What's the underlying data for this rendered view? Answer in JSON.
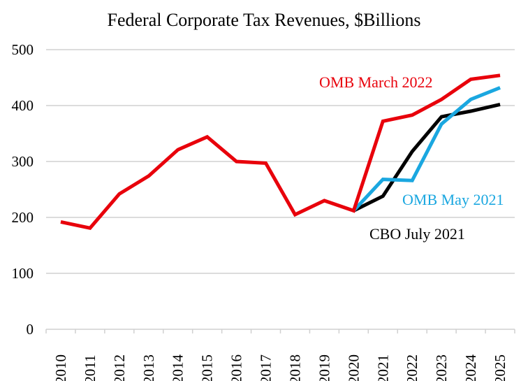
{
  "chart_data": {
    "type": "line",
    "title": "Federal Corporate Tax Revenues, $Billions",
    "xlabel": "",
    "ylabel": "",
    "ylim": [
      0,
      500
    ],
    "yticks": [
      0,
      100,
      200,
      300,
      400,
      500
    ],
    "grid": true,
    "categories": [
      "2010",
      "2011",
      "2012",
      "2013",
      "2014",
      "2015",
      "2016",
      "2017",
      "2018",
      "2019",
      "2020",
      "2021",
      "2022",
      "2023",
      "2024",
      "2025"
    ],
    "series": [
      {
        "name": "OMB March 2022",
        "color": "#e8000b",
        "values": [
          192,
          181,
          242,
          274,
          321,
          344,
          300,
          297,
          205,
          230,
          212,
          372,
          383,
          411,
          447,
          454
        ]
      },
      {
        "name": "OMB May 2021",
        "color": "#1aa7e0",
        "values": [
          null,
          null,
          null,
          null,
          null,
          null,
          null,
          null,
          null,
          null,
          212,
          268,
          266,
          367,
          411,
          432
        ]
      },
      {
        "name": "CBO July 2021",
        "color": "#000000",
        "values": [
          null,
          null,
          null,
          null,
          null,
          null,
          null,
          null,
          null,
          null,
          212,
          238,
          318,
          380,
          390,
          402
        ]
      }
    ]
  }
}
